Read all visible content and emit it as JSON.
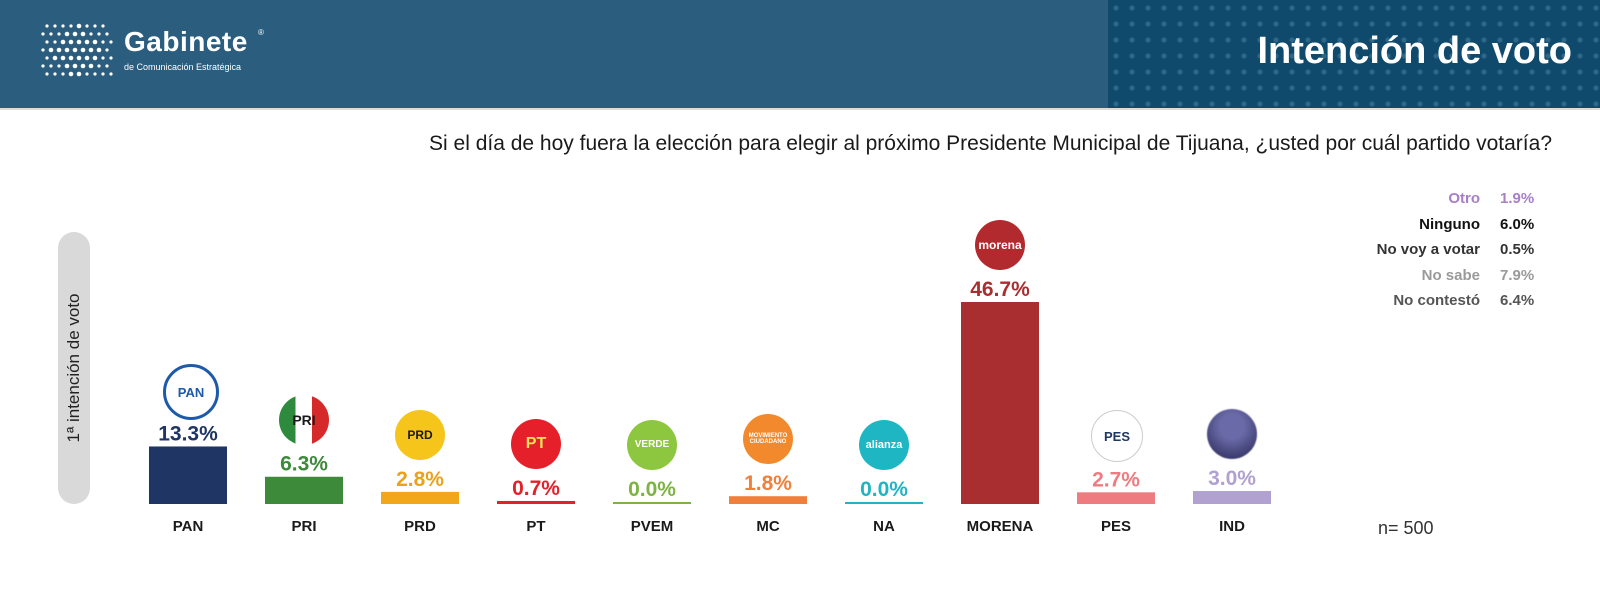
{
  "header": {
    "brand_name": "Gabinete",
    "brand_registered": "®",
    "brand_sub": "de Comunicación Estratégica",
    "title": "Intención de voto"
  },
  "question": "Si el día de hoy fuera la elección para elegir al próximo Presidente Municipal de Tijuana, ¿usted por cuál partido votaría?",
  "y_axis_label": "1ª intención de voto",
  "sample": "n= 500",
  "legend": [
    {
      "label": "Otro",
      "value": "1.9%",
      "color": "#a77fc7"
    },
    {
      "label": "Ninguno",
      "value": "6.0%",
      "color": "#111111"
    },
    {
      "label": "No voy a votar",
      "value": "0.5%",
      "color": "#333333"
    },
    {
      "label": "No sabe",
      "value": "7.9%",
      "color": "#9a9a9a"
    },
    {
      "label": "No contestó",
      "value": "6.4%",
      "color": "#555555"
    }
  ],
  "logos": {
    "PAN": "PAN",
    "PRI": "PRI",
    "PRD": "PRD",
    "PT": "PT",
    "PVEM": "VERDE",
    "MC": "MOVIMIENTO CIUDADANO",
    "NA": "alianza",
    "MORENA": "morena",
    "PES": "PES"
  },
  "chart_data": {
    "type": "bar",
    "title": "Intención de voto",
    "ylabel": "1ª intención de voto",
    "xlabel": "",
    "ylim": [
      0,
      50
    ],
    "categories": [
      "PAN",
      "PRI",
      "PRD",
      "PT",
      "PVEM",
      "MC",
      "NA",
      "MORENA",
      "PES",
      "IND"
    ],
    "values": [
      13.3,
      6.3,
      2.8,
      0.7,
      0.0,
      1.8,
      0.0,
      46.7,
      2.7,
      3.0
    ],
    "value_labels": [
      "13.3%",
      "6.3%",
      "2.8%",
      "0.7%",
      "0.0%",
      "1.8%",
      "0.0%",
      "46.7%",
      "2.7%",
      "3.0%"
    ],
    "colors": [
      "#1f3664",
      "#3d8a3a",
      "#f2a71b",
      "#e5202a",
      "#7cb342",
      "#ef7f3a",
      "#21b5c2",
      "#a82e30",
      "#ee7b7f",
      "#b1a1d0"
    ],
    "label_colors": [
      "#1f3664",
      "#3d8a3a",
      "#e9a21c",
      "#e5202a",
      "#7cb342",
      "#ef7f3a",
      "#21b5c2",
      "#a82e30",
      "#ee7b7f",
      "#b1a1d0"
    ]
  }
}
